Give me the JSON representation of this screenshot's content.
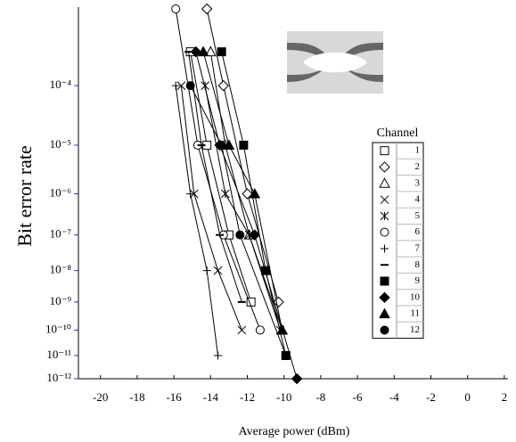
{
  "chart_data": {
    "type": "line",
    "y_scale": "log-log",
    "x_label": "Average power (dBm)",
    "y_label": "Bit error rate",
    "legend_title": "Channel",
    "legend_position": "right",
    "xlim": [
      -21.2,
      2.2
    ],
    "xticks": [
      -20,
      -18,
      -16,
      -14,
      -12,
      -10,
      -8,
      -6,
      -4,
      -2,
      0,
      2
    ],
    "ylim": [
      1e-12,
      0.001
    ],
    "yticks": [
      {
        "value": 0.0001,
        "label": "10⁻⁴"
      },
      {
        "value": 1e-05,
        "label": "10⁻⁵"
      },
      {
        "value": 1e-06,
        "label": "10⁻⁶"
      },
      {
        "value": 1e-07,
        "label": "10⁻⁷"
      },
      {
        "value": 1e-08,
        "label": "10⁻⁸"
      },
      {
        "value": 1e-09,
        "label": "10⁻⁹"
      },
      {
        "value": 1e-10,
        "label": "10⁻¹⁰"
      },
      {
        "value": 1e-11,
        "label": "10⁻¹¹"
      },
      {
        "value": 1e-12,
        "label": "10⁻¹²"
      }
    ],
    "series": [
      {
        "name": "1",
        "marker": "square",
        "color": "#000",
        "x": [
          -15.1,
          -14.2,
          -13.0,
          -11.8
        ],
        "values": [
          0.0003,
          1e-05,
          1e-07,
          1e-09
        ]
      },
      {
        "name": "2",
        "marker": "diamond",
        "color": "#000",
        "x": [
          -14.2,
          -13.3,
          -12.0,
          -10.3
        ],
        "values": [
          0.001,
          0.0001,
          1e-06,
          1e-09
        ]
      },
      {
        "name": "3",
        "marker": "triangle",
        "color": "#000",
        "x": [
          -14.0,
          -13.2,
          -11.9,
          -10.1
        ],
        "values": [
          0.0003,
          1e-05,
          1e-07,
          1e-10
        ]
      },
      {
        "name": "4",
        "marker": "x",
        "color": "#000",
        "x": [
          -15.6,
          -14.9,
          -13.6,
          -12.3
        ],
        "values": [
          0.0001,
          1e-06,
          1e-08,
          1e-10
        ]
      },
      {
        "name": "5",
        "marker": "asterisk",
        "color": "#000",
        "x": [
          -14.3,
          -13.2,
          -11.9,
          -10.2
        ],
        "values": [
          0.0001,
          1e-06,
          1e-07,
          1e-10
        ]
      },
      {
        "name": "6",
        "marker": "circle",
        "color": "#000",
        "x": [
          -15.9,
          -14.7,
          -13.3,
          -11.3
        ],
        "values": [
          0.001,
          1e-05,
          1e-07,
          1e-10
        ]
      },
      {
        "name": "7",
        "marker": "plus",
        "color": "#000",
        "x": [
          -15.9,
          -15.1,
          -14.2,
          -13.6
        ],
        "values": [
          0.0001,
          1e-06,
          1e-08,
          1e-11
        ]
      },
      {
        "name": "8",
        "marker": "dash",
        "color": "#000",
        "x": [
          -15.2,
          -14.5,
          -13.5,
          -12.3
        ],
        "values": [
          0.0003,
          1e-05,
          1e-07,
          1e-09
        ]
      },
      {
        "name": "9",
        "marker": "square-filled",
        "color": "#000",
        "x": [
          -13.4,
          -12.2,
          -11.0,
          -9.9
        ],
        "values": [
          0.0003,
          1e-05,
          1e-08,
          1e-11
        ]
      },
      {
        "name": "10",
        "marker": "diamond-filled",
        "color": "#000",
        "x": [
          -14.8,
          -13.5,
          -11.6,
          -9.3
        ],
        "values": [
          0.0003,
          1e-05,
          1e-07,
          1e-12
        ]
      },
      {
        "name": "11",
        "marker": "triangle-filled",
        "color": "#000",
        "x": [
          -14.4,
          -13.0,
          -11.6,
          -10.1
        ],
        "values": [
          0.0003,
          1e-05,
          1e-06,
          1e-10
        ]
      },
      {
        "name": "12",
        "marker": "circle-filled",
        "color": "#000",
        "x": [
          -15.1,
          -13.4,
          -12.4,
          -9.9
        ],
        "values": [
          0.0001,
          1e-05,
          1e-07,
          1e-11
        ]
      }
    ]
  }
}
